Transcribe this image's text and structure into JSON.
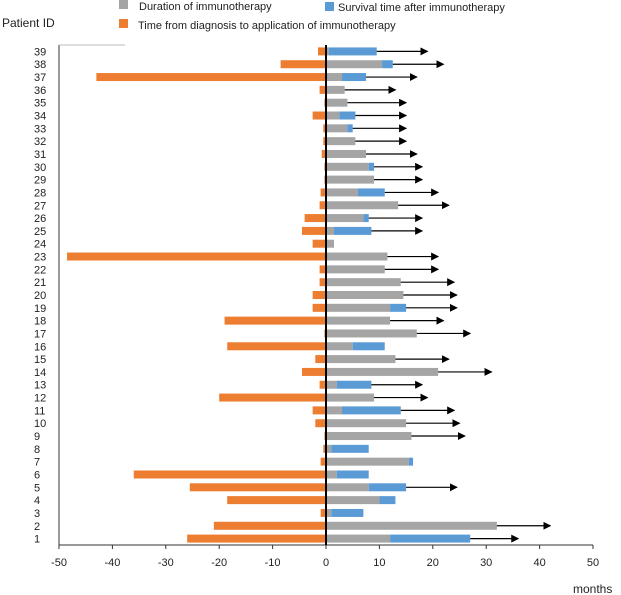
{
  "chart_data": {
    "type": "bar",
    "orientation": "horizontal",
    "ylabel": "Patient ID",
    "xlabel": "months",
    "xlim": [
      -50,
      50
    ],
    "xticks": [
      -50,
      -40,
      -30,
      -20,
      -10,
      0,
      10,
      20,
      30,
      40,
      50
    ],
    "legend": {
      "placement": "top",
      "entries": [
        {
          "key": "duration",
          "label": "Duration   of   immunotherapy",
          "color": "#a5a5a5"
        },
        {
          "key": "survival",
          "label": "Survival time after immunotherapy",
          "color": "#5b9bd5"
        },
        {
          "key": "diagnosis",
          "label": "Time from diagnosis to application of immunotherapy",
          "color": "#ed7d31"
        }
      ]
    },
    "series": [
      {
        "name": "Time from diagnosis to application of immunotherapy",
        "key": "diagnosis",
        "color": "#ed7d31"
      },
      {
        "name": "Duration of immunotherapy",
        "key": "duration",
        "color": "#a5a5a5"
      },
      {
        "name": "Survival time after immunotherapy",
        "key": "survival",
        "color": "#5b9bd5"
      }
    ],
    "patients": [
      {
        "id": "1",
        "diagnosis": -26,
        "duration": 12,
        "survival": 15,
        "ongoing": true
      },
      {
        "id": "2",
        "diagnosis": -21,
        "duration": 32,
        "survival": 0,
        "ongoing": true
      },
      {
        "id": "3",
        "diagnosis": -1,
        "duration": 1,
        "survival": 6,
        "ongoing": false
      },
      {
        "id": "4",
        "diagnosis": -18.5,
        "duration": 10,
        "survival": 3,
        "ongoing": false
      },
      {
        "id": "5",
        "diagnosis": -25.5,
        "duration": 8,
        "survival": 7,
        "ongoing": true
      },
      {
        "id": "6",
        "diagnosis": -36,
        "duration": 2,
        "survival": 6,
        "ongoing": false
      },
      {
        "id": "7",
        "diagnosis": -1,
        "duration": 15.5,
        "survival": 0.8,
        "ongoing": false
      },
      {
        "id": "8",
        "diagnosis": -0.5,
        "duration": 1,
        "survival": 7,
        "ongoing": false
      },
      {
        "id": "9",
        "diagnosis": -0.3,
        "duration": 16,
        "survival": 0,
        "ongoing": true
      },
      {
        "id": "10",
        "diagnosis": -2,
        "duration": 15,
        "survival": 0,
        "ongoing": true
      },
      {
        "id": "11",
        "diagnosis": -2.5,
        "duration": 3,
        "survival": 11,
        "ongoing": true
      },
      {
        "id": "12",
        "diagnosis": -20,
        "duration": 9,
        "survival": 0,
        "ongoing": true
      },
      {
        "id": "13",
        "diagnosis": -1.2,
        "duration": 2,
        "survival": 6.5,
        "ongoing": true
      },
      {
        "id": "14",
        "diagnosis": -4.5,
        "duration": 21,
        "survival": 0,
        "ongoing": true
      },
      {
        "id": "15",
        "diagnosis": -2,
        "duration": 13,
        "survival": 0,
        "ongoing": true
      },
      {
        "id": "16",
        "diagnosis": -18.5,
        "duration": 5,
        "survival": 6,
        "ongoing": false
      },
      {
        "id": "17",
        "diagnosis": -0.3,
        "duration": 17,
        "survival": 0,
        "ongoing": true
      },
      {
        "id": "18",
        "diagnosis": -19,
        "duration": 12,
        "survival": 0,
        "ongoing": true
      },
      {
        "id": "19",
        "diagnosis": -2.5,
        "duration": 12,
        "survival": 3,
        "ongoing": true
      },
      {
        "id": "20",
        "diagnosis": -2.5,
        "duration": 14.5,
        "survival": 0,
        "ongoing": true
      },
      {
        "id": "21",
        "diagnosis": -1.2,
        "duration": 14,
        "survival": 0,
        "ongoing": true
      },
      {
        "id": "22",
        "diagnosis": -1.2,
        "duration": 11,
        "survival": 0,
        "ongoing": true
      },
      {
        "id": "23",
        "diagnosis": -48.5,
        "duration": 11.5,
        "survival": 0,
        "ongoing": true
      },
      {
        "id": "24",
        "diagnosis": -2.5,
        "duration": 1.5,
        "survival": 0,
        "ongoing": false
      },
      {
        "id": "25",
        "diagnosis": -4.5,
        "duration": 1.5,
        "survival": 7,
        "ongoing": true
      },
      {
        "id": "26",
        "diagnosis": -4,
        "duration": 7,
        "survival": 1,
        "ongoing": true
      },
      {
        "id": "27",
        "diagnosis": -1.2,
        "duration": 13.5,
        "survival": 0,
        "ongoing": true
      },
      {
        "id": "28",
        "diagnosis": -1,
        "duration": 6,
        "survival": 5,
        "ongoing": true
      },
      {
        "id": "29",
        "diagnosis": -0.3,
        "duration": 9,
        "survival": 0,
        "ongoing": true
      },
      {
        "id": "30",
        "diagnosis": -0.3,
        "duration": 8,
        "survival": 1,
        "ongoing": true
      },
      {
        "id": "31",
        "diagnosis": -0.8,
        "duration": 7.5,
        "survival": 0,
        "ongoing": true
      },
      {
        "id": "32",
        "diagnosis": -0.5,
        "duration": 5.5,
        "survival": 0,
        "ongoing": true
      },
      {
        "id": "33",
        "diagnosis": -0.5,
        "duration": 4,
        "survival": 1,
        "ongoing": true
      },
      {
        "id": "34",
        "diagnosis": -2.5,
        "duration": 2.5,
        "survival": 3,
        "ongoing": true
      },
      {
        "id": "35",
        "diagnosis": -0.3,
        "duration": 4,
        "survival": 0,
        "ongoing": true
      },
      {
        "id": "36",
        "diagnosis": -1.2,
        "duration": 3.5,
        "survival": 0,
        "ongoing": true
      },
      {
        "id": "37",
        "diagnosis": -43,
        "duration": 3,
        "survival": 4.5,
        "ongoing": true
      },
      {
        "id": "38",
        "diagnosis": -8.5,
        "duration": 10.5,
        "survival": 2,
        "ongoing": true
      },
      {
        "id": "39",
        "diagnosis": -1.5,
        "duration": 0.5,
        "survival": 9,
        "ongoing": true
      }
    ],
    "arrow_ends": {
      "1": 36,
      "2": 42,
      "5": 24.5,
      "9": 26,
      "10": 25,
      "11": 24,
      "12": 19,
      "13": 18,
      "14": 31,
      "15": 23,
      "17": 27,
      "18": 22,
      "19": 24.5,
      "20": 24.5,
      "21": 24,
      "22": 21,
      "23": 21,
      "25": 18,
      "26": 18,
      "27": 23,
      "28": 21,
      "29": 18,
      "30": 18,
      "31": 17,
      "32": 15,
      "33": 15,
      "34": 15,
      "35": 15,
      "36": 13,
      "37": 17,
      "38": 22,
      "39": 19
    }
  }
}
